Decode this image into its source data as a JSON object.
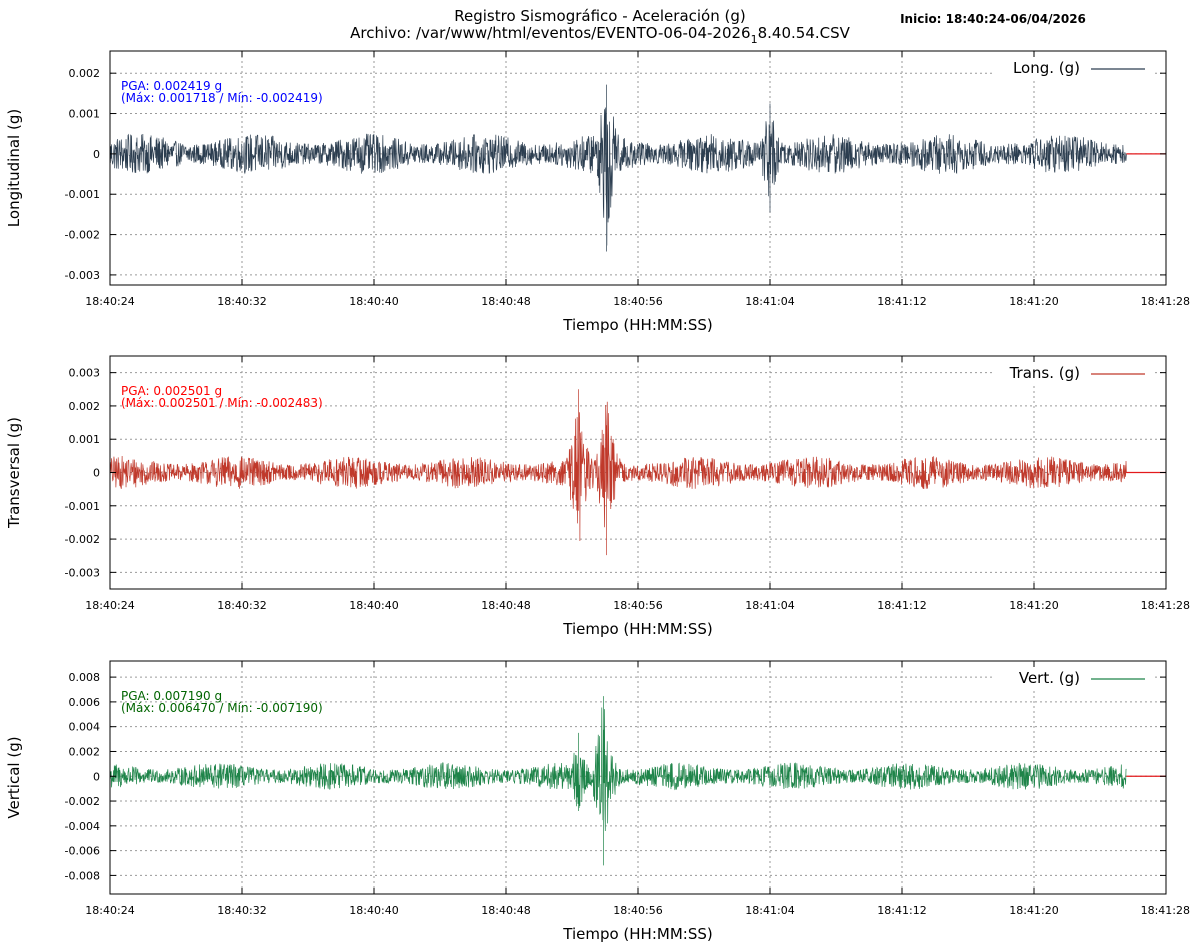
{
  "header": {
    "title_line1": "Registro Sismográfico - Aceleración (g)",
    "title_line2_prefix": "Archivo: /var/www/html/eventos/EVENTO-06-04-2026",
    "title_line2_sub": "1",
    "title_line2_suffix": "8.40.54.CSV",
    "inicio": "Inicio: 18:40:24-06/04/2026"
  },
  "colors": {
    "long": "#2c3e50",
    "trans": "#c0392b",
    "vert": "#1e8449",
    "zero_line": "#e31a1c",
    "grid": "#9a9a9a",
    "pga_long": "#0000ff",
    "pga_trans": "#ff0000",
    "pga_vert": "#006400"
  },
  "chart_data": [
    {
      "type": "line",
      "ylabel": "Longitudinal (g)",
      "xlabel": "Tiempo (HH:MM:SS)",
      "legend": "Long. (g)",
      "legend_position": "top-right",
      "grid": true,
      "x_range_seconds": [
        0,
        64
      ],
      "data_end_second": 61.6,
      "x_ticks": [
        "18:40:24",
        "18:40:32",
        "18:40:40",
        "18:40:48",
        "18:40:56",
        "18:41:04",
        "18:41:12",
        "18:41:20",
        "18:41:28"
      ],
      "ylim": [
        -0.00325,
        0.00255
      ],
      "y_ticks": [
        0.002,
        0.001,
        0,
        -0.001,
        -0.002,
        -0.003
      ],
      "y_tick_labels": [
        "0.002",
        "0.001",
        "0",
        "-0.001",
        "-0.002",
        "-0.003"
      ],
      "baseline_amplitude": 0.0005,
      "events": [
        {
          "t": 30.1,
          "max": 0.001718,
          "min": -0.002419
        },
        {
          "t": 40.0,
          "max": 0.00125,
          "min": -0.00145
        }
      ],
      "pga_line1": "PGA: 0.002419 g",
      "pga_line2": "(Máx: 0.001718 / Mín: -0.002419)"
    },
    {
      "type": "line",
      "ylabel": "Transversal (g)",
      "xlabel": "Tiempo (HH:MM:SS)",
      "legend": "Trans. (g)",
      "legend_position": "top-right",
      "grid": true,
      "x_range_seconds": [
        0,
        64
      ],
      "data_end_second": 61.6,
      "x_ticks": [
        "18:40:24",
        "18:40:32",
        "18:40:40",
        "18:40:48",
        "18:40:56",
        "18:41:04",
        "18:41:12",
        "18:41:20",
        "18:41:28"
      ],
      "ylim": [
        -0.0035,
        0.0035
      ],
      "y_ticks": [
        0.003,
        0.002,
        0.001,
        0,
        -0.001,
        -0.002,
        -0.003
      ],
      "y_tick_labels": [
        "0.003",
        "0.002",
        "0.001",
        "0",
        "-0.001",
        "-0.002",
        "-0.003"
      ],
      "baseline_amplitude": 0.0005,
      "events": [
        {
          "t": 28.4,
          "max": 0.002501,
          "min": -0.00115
        },
        {
          "t": 30.1,
          "max": 0.00142,
          "min": -0.002483
        }
      ],
      "pga_line1": "PGA: 0.002501 g",
      "pga_line2": "(Máx: 0.002501 / Mín: -0.002483)"
    },
    {
      "type": "line",
      "ylabel": "Vertical (g)",
      "xlabel": "Tiempo (HH:MM:SS)",
      "legend": "Vert. (g)",
      "legend_position": "top-right",
      "grid": true,
      "x_range_seconds": [
        0,
        64
      ],
      "data_end_second": 61.6,
      "x_ticks": [
        "18:40:24",
        "18:40:32",
        "18:40:40",
        "18:40:48",
        "18:40:56",
        "18:41:04",
        "18:41:12",
        "18:41:20",
        "18:41:28"
      ],
      "ylim": [
        -0.0095,
        0.0093
      ],
      "y_ticks": [
        0.008,
        0.006,
        0.004,
        0.002,
        0,
        -0.002,
        -0.004,
        -0.006,
        -0.008
      ],
      "y_tick_labels": [
        "0.008",
        "0.006",
        "0.004",
        "0.002",
        "0",
        "-0.002",
        "-0.004",
        "-0.006",
        "-0.008"
      ],
      "baseline_amplitude": 0.0011,
      "events": [
        {
          "t": 28.4,
          "max": 0.0035,
          "min": -0.0028
        },
        {
          "t": 29.9,
          "max": 0.00647,
          "min": -0.00719
        }
      ],
      "pga_line1": "PGA: 0.007190 g",
      "pga_line2": "(Máx: 0.006470 / Mín: -0.007190)"
    }
  ]
}
